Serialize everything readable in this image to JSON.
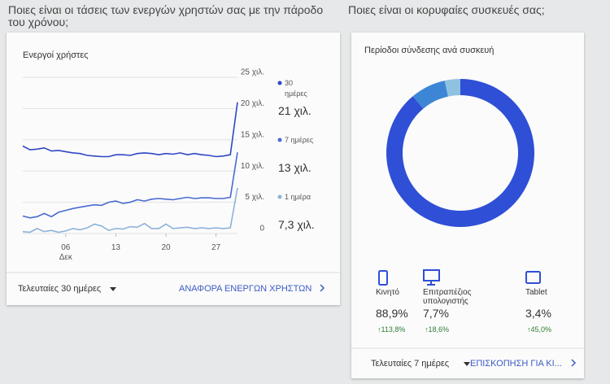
{
  "headings": [
    "Ποιες είναι οι τάσεις των ενεργών χρηστών σας με την πάροδο του χρόνου;",
    "Ποιες είναι οι κορυφαίες συσκευές σας;"
  ],
  "chart_data": [
    {
      "type": "line",
      "title": "Ενεργοί χρήστες",
      "categories": [
        null,
        null,
        null,
        null,
        null,
        null,
        "06 Δεκ",
        null,
        null,
        null,
        null,
        null,
        null,
        "13",
        null,
        null,
        null,
        null,
        null,
        null,
        "20",
        null,
        null,
        null,
        null,
        null,
        null,
        "27",
        null,
        null,
        null
      ],
      "series": [
        {
          "name": "30 ημέρες",
          "color": "#2f47c4",
          "current": "21 χιλ.",
          "values": [
            14000,
            13400,
            13500,
            13700,
            13200,
            13300,
            13100,
            12900,
            12800,
            12500,
            12400,
            12300,
            12300,
            12600,
            12600,
            12500,
            12800,
            12900,
            12800,
            12600,
            12800,
            12700,
            12900,
            12600,
            12800,
            12600,
            12500,
            12300,
            12400,
            12600,
            21000
          ]
        },
        {
          "name": "7 ημέρες",
          "color": "#4a6bd0",
          "current": "13 χιλ.",
          "values": [
            2800,
            2500,
            2700,
            3200,
            2700,
            3400,
            3700,
            4000,
            4200,
            4400,
            4600,
            4500,
            5000,
            5200,
            4800,
            5000,
            5400,
            5200,
            5500,
            5600,
            5500,
            5400,
            5600,
            5800,
            5600,
            5700,
            5700,
            5600,
            5600,
            5800,
            13000
          ]
        },
        {
          "name": "1 ημέρα",
          "color": "#8db3d9",
          "current": "7,3 χιλ.",
          "values": [
            300,
            200,
            800,
            300,
            500,
            200,
            400,
            800,
            600,
            900,
            1500,
            1200,
            500,
            800,
            700,
            1100,
            1000,
            1600,
            800,
            800,
            1500,
            800,
            900,
            1000,
            800,
            900,
            800,
            900,
            800,
            900,
            7300
          ]
        }
      ],
      "ylim": [
        0,
        25000
      ],
      "yticks": [
        0,
        {
          "value": 5000,
          "label": "5 χιλ."
        },
        {
          "value": 10000,
          "label": "10 χιλ."
        },
        {
          "value": 15000,
          "label": "15 χιλ."
        },
        {
          "value": 20000,
          "label": "20 χιλ."
        },
        {
          "value": 25000,
          "label": "25 χιλ."
        }
      ],
      "grid": true
    },
    {
      "type": "pie",
      "title": "Περίοδοι σύνδεσης ανά συσκευή",
      "categories": [
        "Κινητό",
        "Επιτραπέζιος υπολογιστής",
        "Tablet"
      ],
      "values": [
        88.9,
        7.7,
        3.4
      ],
      "value_labels": [
        "88,9%",
        "7,7%",
        "3,4%"
      ],
      "changes": [
        "↑113,8%",
        "↑18,6%",
        "↑45,0%"
      ],
      "colors": [
        "#2f4fd6",
        "#3d86d6",
        "#8fc1e0"
      ]
    }
  ],
  "line_card": {
    "range": "Τελευταίες 30 ημέρες",
    "link": "ΑΝΑΦΟΡΑ ΕΝΕΡΓΩΝ ΧΡΗΣΤΩΝ"
  },
  "device_card": {
    "range": "Τελευταίες 7 ημέρες",
    "link": "ΕΠΙΣΚΟΠΗΣΗ ΓΙΑ ΚΙ..."
  }
}
